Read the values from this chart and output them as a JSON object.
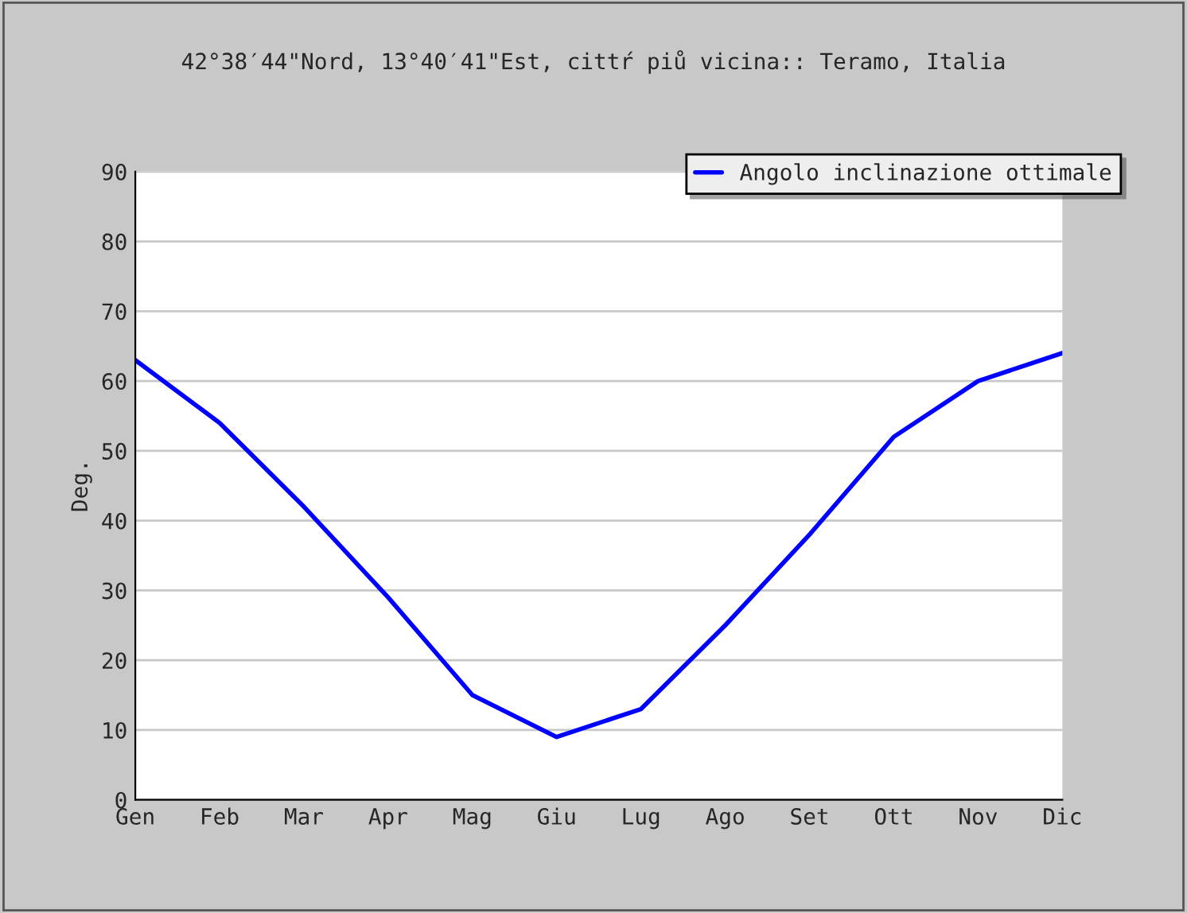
{
  "chart_data": {
    "type": "line",
    "title": "42°38′44\"Nord, 13°40′41\"Est, cittŕ piů vicina:: Teramo, Italia",
    "ylabel": "Deg.",
    "categories": [
      "Gen",
      "Feb",
      "Mar",
      "Apr",
      "Mag",
      "Giu",
      "Lug",
      "Ago",
      "Set",
      "Ott",
      "Nov",
      "Dic"
    ],
    "series": [
      {
        "name": "Angolo inclinazione ottimale",
        "color": "#0000ff",
        "values": [
          63,
          54,
          42,
          29,
          15,
          9,
          13,
          25,
          38,
          52,
          60,
          64
        ]
      }
    ],
    "ylim": [
      0,
      90
    ],
    "yticks": [
      0,
      10,
      20,
      30,
      40,
      50,
      60,
      70,
      80,
      90
    ],
    "grid": "y",
    "legend": "top right",
    "marker": "none",
    "line_style": "solid"
  }
}
